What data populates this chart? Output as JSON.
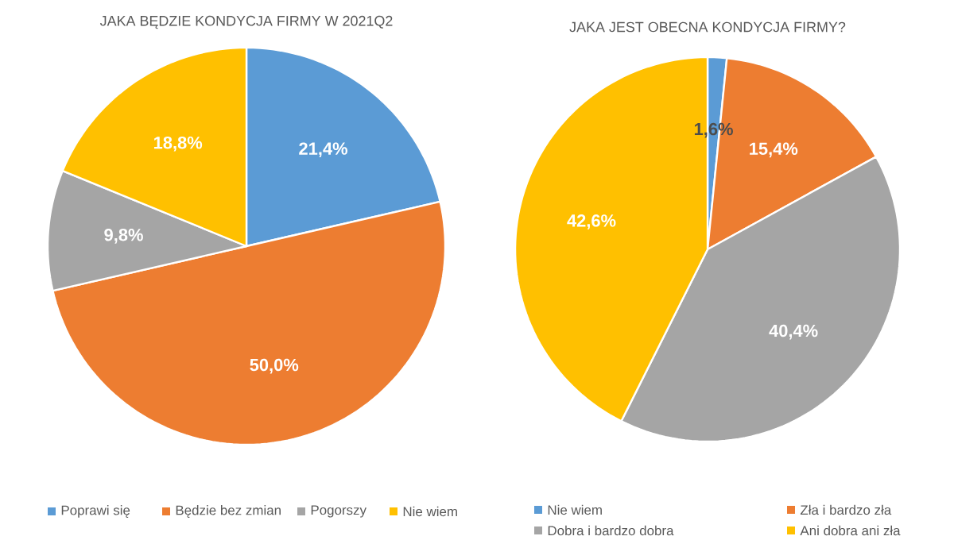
{
  "chart_data": [
    {
      "type": "pie",
      "title": "JAKA BĘDZIE KONDYCJA FIRMY W 2021Q2",
      "categories": [
        "Poprawi się",
        "Będzie bez zmian",
        "Pogorszy",
        "Nie wiem"
      ],
      "values": [
        21.4,
        50.0,
        9.8,
        18.8
      ],
      "value_labels": [
        "21,4%",
        "50,0%",
        "9,8%",
        "18,8%"
      ],
      "colors": [
        "#5b9bd5",
        "#ed7d31",
        "#a5a5a5",
        "#ffc000"
      ],
      "legend": "bottom"
    },
    {
      "type": "pie",
      "title": "JAKA JEST OBECNA KONDYCJA FIRMY?",
      "categories": [
        "Nie wiem",
        "Zła i bardzo zła",
        "Dobra i bardzo dobra",
        "Ani dobra ani zła"
      ],
      "values": [
        1.6,
        15.4,
        40.4,
        42.6
      ],
      "value_labels": [
        "1,6%",
        "15,4%",
        "40,4%",
        "42,6%"
      ],
      "colors": [
        "#5b9bd5",
        "#ed7d31",
        "#a5a5a5",
        "#ffc000"
      ],
      "legend": "bottom"
    }
  ]
}
